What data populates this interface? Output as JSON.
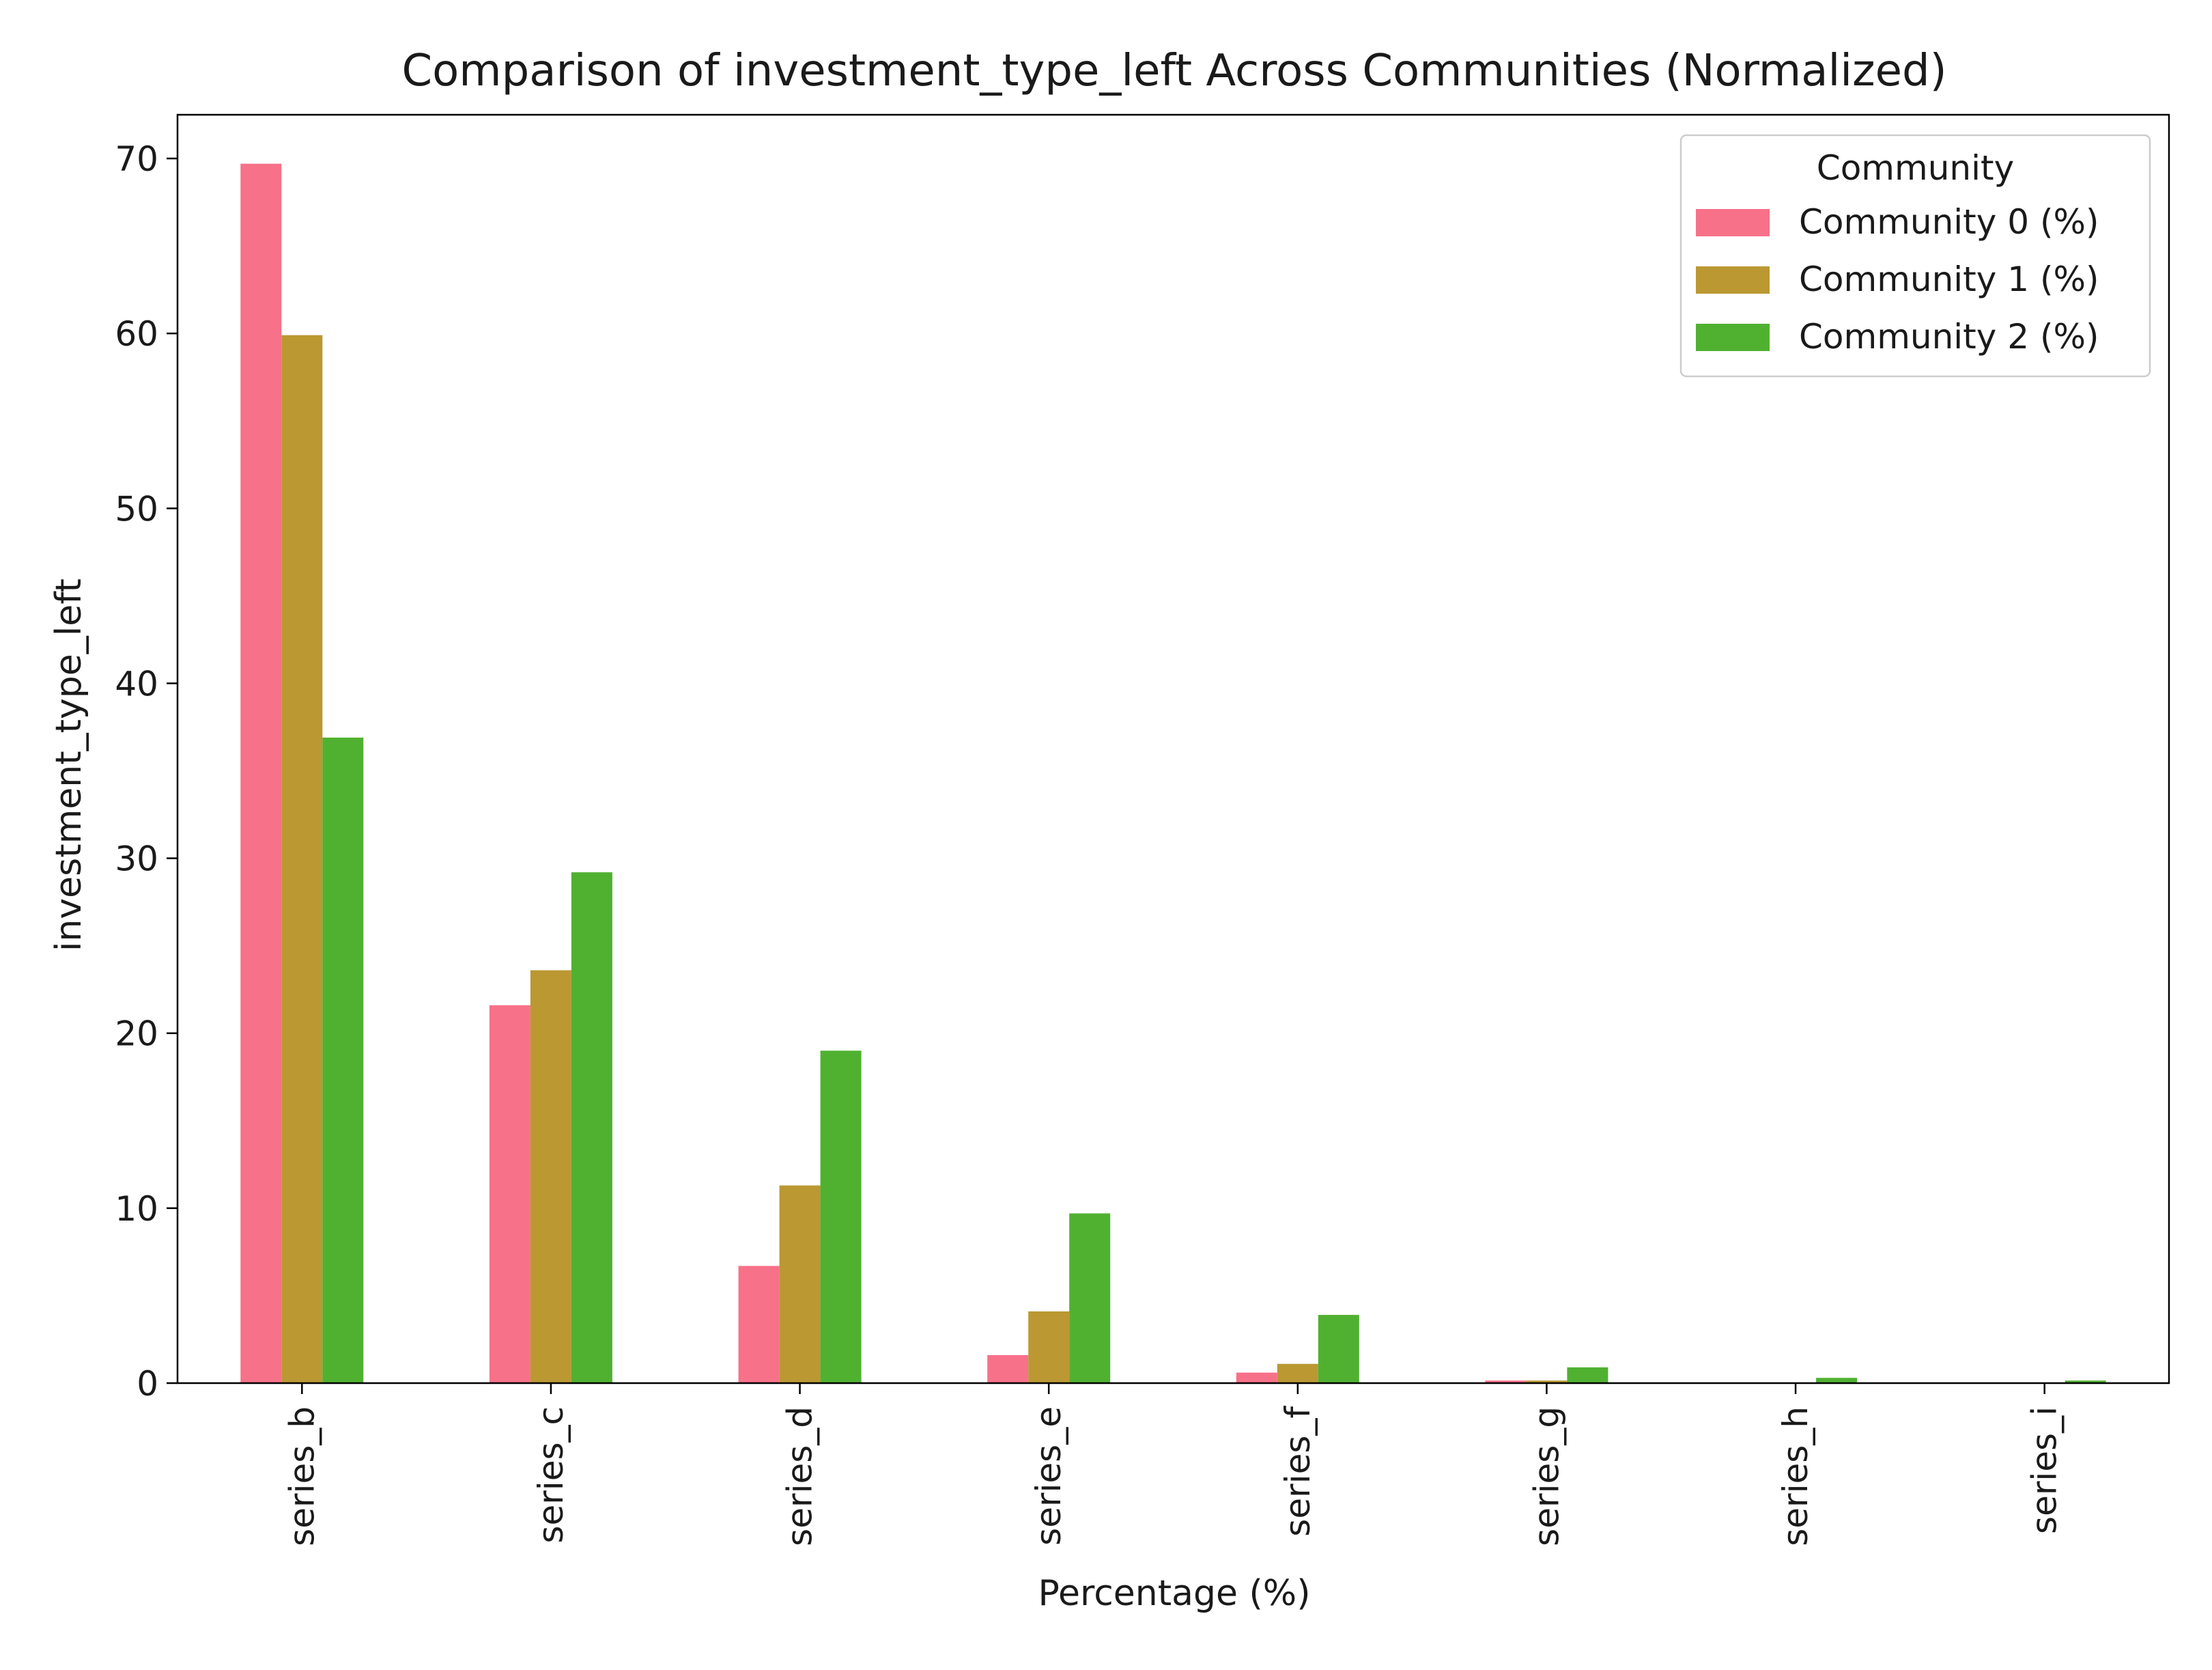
{
  "chart_data": {
    "type": "bar",
    "title": "Comparison of investment_type_left Across Communities (Normalized)",
    "xlabel": "Percentage (%)",
    "ylabel": "investment_type_left",
    "categories": [
      "series_b",
      "series_c",
      "series_d",
      "series_e",
      "series_f",
      "series_g",
      "series_h",
      "series_i"
    ],
    "series": [
      {
        "name": "Community 0 (%)",
        "color": "#f77189",
        "values": [
          69.7,
          21.6,
          6.7,
          1.6,
          0.6,
          0.15,
          0.0,
          0.0
        ]
      },
      {
        "name": "Community 1 (%)",
        "color": "#bb9832",
        "values": [
          59.9,
          23.6,
          11.3,
          4.1,
          1.1,
          0.15,
          0.0,
          0.0
        ]
      },
      {
        "name": "Community 2 (%)",
        "color": "#50b131",
        "values": [
          36.9,
          29.2,
          19.0,
          9.7,
          3.9,
          0.9,
          0.3,
          0.15
        ]
      }
    ],
    "ylim": [
      0,
      72.5
    ],
    "yticks": [
      0,
      10,
      20,
      30,
      40,
      50,
      60,
      70
    ],
    "legend": {
      "title": "Community",
      "position": "top-right"
    },
    "grid": false
  }
}
